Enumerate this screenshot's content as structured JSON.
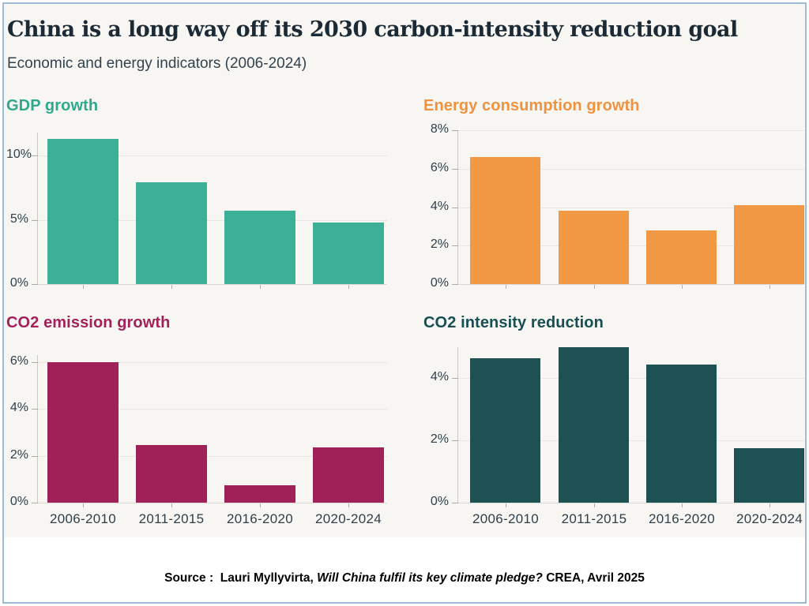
{
  "header": {
    "title": "China is a long way off its 2030 carbon-intensity reduction goal",
    "subtitle": "Economic and energy indicators (2006-2024)"
  },
  "source": {
    "label": "Source :  ",
    "authors": "Lauri Myllyvirta, ",
    "work": "Will China fulfil its key climate pledge? ",
    "publisher": "CREA, Avril 2025"
  },
  "colors": {
    "frame": "#9fbbd8",
    "figure_background": "#f7f6f3",
    "title_text": "#1c2a35",
    "axis_text": "#2e3f49",
    "gridline": "#e7e6e2"
  },
  "chart_data": [
    {
      "type": "bar",
      "title": "GDP growth",
      "title_color": "#2fa88d",
      "bar_color": "#3bb097",
      "categories": [
        "2006-2010",
        "2011-2015",
        "2016-2020",
        "2020-2024"
      ],
      "values": [
        11.3,
        7.9,
        5.7,
        4.8
      ],
      "yticks": [
        0,
        5,
        10
      ],
      "ytick_suffix": "%",
      "ylim": [
        0,
        11.8
      ],
      "grid": true,
      "show_xlabels": false,
      "legend": "none"
    },
    {
      "type": "bar",
      "title": "Energy consumption growth",
      "title_color": "#f0923e",
      "bar_color": "#f09843",
      "categories": [
        "2006-2010",
        "2011-2015",
        "2016-2020",
        "2020-2024"
      ],
      "values": [
        6.6,
        3.8,
        2.8,
        4.1
      ],
      "yticks": [
        0,
        2,
        4,
        6,
        8
      ],
      "ytick_suffix": "%",
      "ylim": [
        0,
        8
      ],
      "grid": true,
      "show_xlabels": false,
      "legend": "none"
    },
    {
      "type": "bar",
      "title": "CO2 emission growth",
      "title_color": "#a2215a",
      "bar_color": "#a02157",
      "categories": [
        "2006-2010",
        "2011-2015",
        "2016-2020",
        "2020-2024"
      ],
      "values": [
        6.0,
        2.45,
        0.75,
        2.35
      ],
      "yticks": [
        0,
        2,
        4,
        6
      ],
      "ytick_suffix": "%",
      "ylim": [
        0,
        6.3
      ],
      "grid": true,
      "show_xlabels": true,
      "legend": "none"
    },
    {
      "type": "bar",
      "title": "CO2 intensity reduction",
      "title_color": "#175054",
      "bar_color": "#1d5153",
      "categories": [
        "2006-2010",
        "2011-2015",
        "2016-2020",
        "2020-2024"
      ],
      "values": [
        4.65,
        5.0,
        4.45,
        1.75
      ],
      "yticks": [
        0,
        2,
        4
      ],
      "ytick_suffix": "%",
      "ylim": [
        0,
        5.0
      ],
      "grid": true,
      "show_xlabels": true,
      "legend": "none"
    }
  ]
}
